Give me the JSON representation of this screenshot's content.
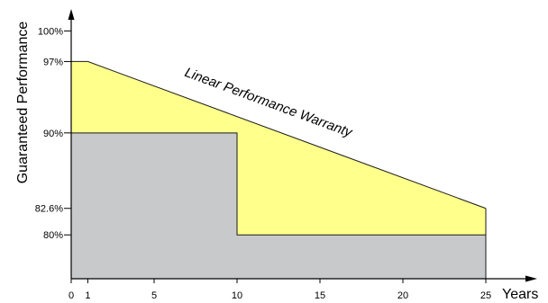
{
  "chart_data": {
    "type": "area",
    "xlabel": "Years",
    "ylabel": "Guaranteed Performance",
    "xlim": [
      0,
      26.5
    ],
    "ylim": [
      75.7,
      101.8
    ],
    "x_ticks": [
      0,
      1,
      5,
      10,
      15,
      20,
      25
    ],
    "y_ticks": [
      {
        "value": 100,
        "label": "100%"
      },
      {
        "value": 97,
        "label": "97%"
      },
      {
        "value": 90,
        "label": "90%"
      },
      {
        "value": 82.6,
        "label": "82.6%"
      },
      {
        "value": 80,
        "label": "80%"
      }
    ],
    "series": [
      {
        "name": "Linear Performance Warranty",
        "color": "#ffff8c",
        "points": [
          [
            0,
            97
          ],
          [
            1,
            97
          ],
          [
            25,
            82.6
          ]
        ]
      },
      {
        "color": "#c8c9cb",
        "points": [
          [
            0,
            90
          ],
          [
            10,
            90
          ],
          [
            10,
            80
          ],
          [
            25,
            80
          ]
        ]
      }
    ],
    "annotations": [
      {
        "text": "Linear Performance Warranty",
        "x": 11.8,
        "y": 92.6
      }
    ],
    "grid": false
  }
}
